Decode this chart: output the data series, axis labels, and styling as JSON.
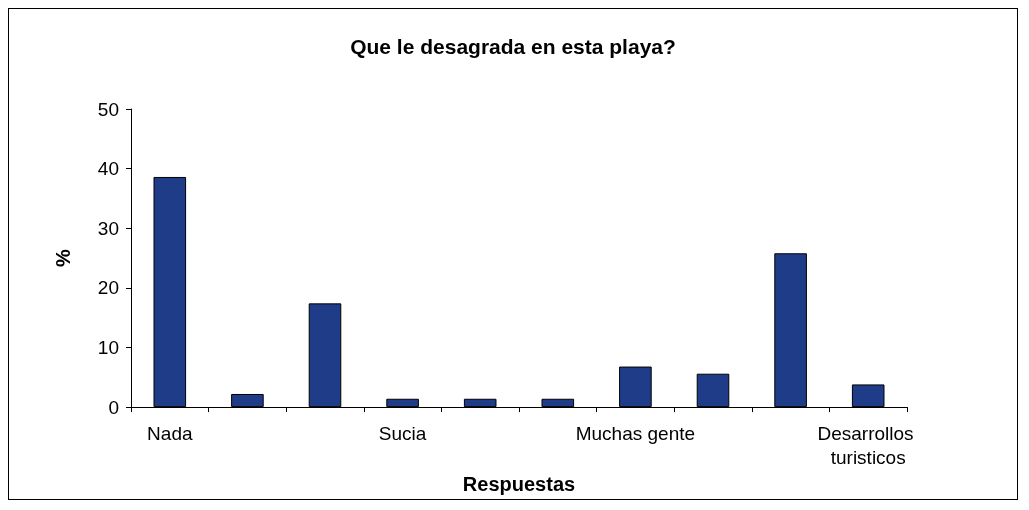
{
  "chart_data": {
    "type": "bar",
    "title": "Que le desagrada en esta playa?",
    "xlabel": "Respuestas",
    "ylabel": "%",
    "categories": [
      "Nada",
      null,
      null,
      "Sucia",
      null,
      null,
      "Muchas gente",
      null,
      null,
      "Desarrollos turisticos"
    ],
    "values": [
      38.6,
      2.2,
      17.4,
      1.4,
      1.4,
      1.4,
      6.8,
      5.6,
      25.8,
      3.8
    ],
    "color": "#1f3c88",
    "ylim": [
      0,
      50
    ],
    "yticks": [
      0,
      10,
      20,
      30,
      40,
      50
    ],
    "grid": false
  }
}
